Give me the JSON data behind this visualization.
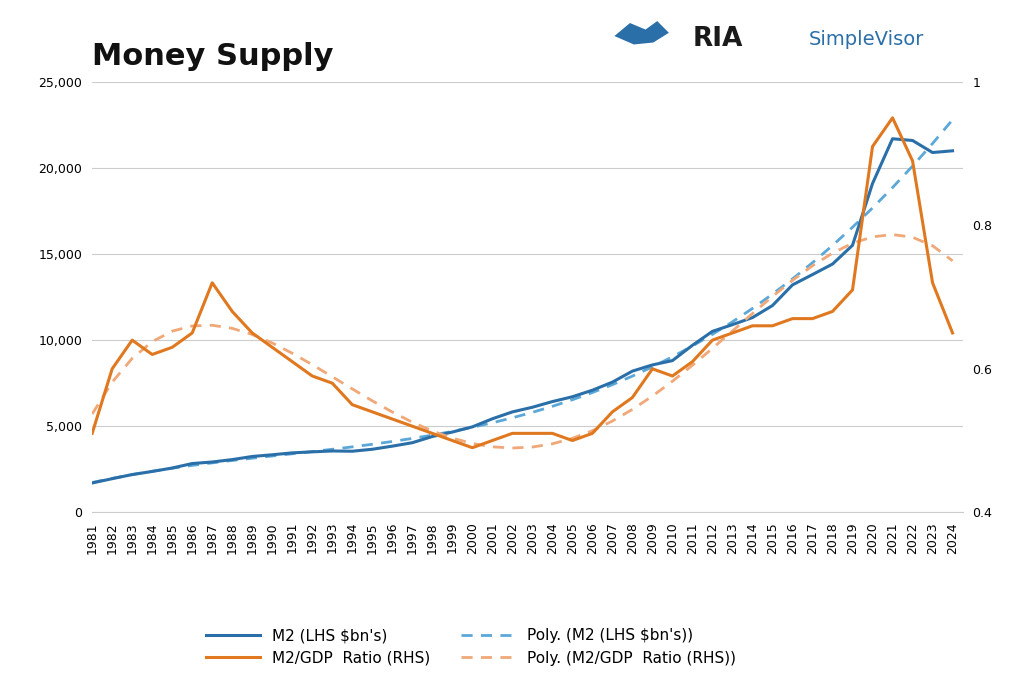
{
  "title": "Money Supply",
  "m2_color": "#2B6FA8",
  "ratio_color": "#E07820",
  "m2_poly_color": "#5BA8D8",
  "ratio_poly_color": "#F0A878",
  "background_color": "#FFFFFF",
  "grid_color": "#CCCCCC",
  "years": [
    1981,
    1982,
    1983,
    1984,
    1985,
    1986,
    1987,
    1988,
    1989,
    1990,
    1991,
    1992,
    1993,
    1994,
    1995,
    1996,
    1997,
    1998,
    1999,
    2000,
    2001,
    2002,
    2003,
    2004,
    2005,
    2006,
    2007,
    2008,
    2009,
    2010,
    2011,
    2012,
    2013,
    2014,
    2015,
    2016,
    2017,
    2018,
    2019,
    2020,
    2021,
    2022,
    2023,
    2024
  ],
  "m2": [
    1700,
    1950,
    2190,
    2370,
    2570,
    2830,
    2920,
    3060,
    3240,
    3340,
    3450,
    3510,
    3560,
    3545,
    3660,
    3840,
    4040,
    4400,
    4660,
    4960,
    5430,
    5830,
    6100,
    6430,
    6710,
    7090,
    7560,
    8200,
    8560,
    8810,
    9700,
    10510,
    10900,
    11310,
    12010,
    13210,
    13810,
    14420,
    15510,
    19100,
    21700,
    21600,
    20900,
    21000
  ],
  "ratio": [
    0.51,
    0.6,
    0.64,
    0.62,
    0.63,
    0.65,
    0.72,
    0.68,
    0.65,
    0.63,
    0.61,
    0.59,
    0.58,
    0.55,
    0.54,
    0.53,
    0.52,
    0.51,
    0.5,
    0.49,
    0.5,
    0.51,
    0.51,
    0.51,
    0.5,
    0.51,
    0.54,
    0.56,
    0.6,
    0.59,
    0.61,
    0.64,
    0.65,
    0.66,
    0.66,
    0.67,
    0.67,
    0.68,
    0.71,
    0.91,
    0.95,
    0.89,
    0.72,
    0.65
  ],
  "ylim_left": [
    0,
    25000
  ],
  "ylim_right": [
    0.4,
    1.0
  ],
  "yticks_left": [
    0,
    5000,
    10000,
    15000,
    20000,
    25000
  ],
  "yticks_right": [
    0.4,
    0.6,
    0.8,
    1.0
  ],
  "title_fontsize": 22,
  "tick_fontsize": 9,
  "legend_fontsize": 11,
  "line_width": 2.2,
  "poly_degree": 4,
  "legend_label_m2": "M2 (LHS $bn's)",
  "legend_label_ratio": "M2/GDP  Ratio (RHS)",
  "legend_label_poly_m2": "Poly. (M2 (LHS $bn's))",
  "legend_label_poly_ratio": "Poly. (M2/GDP  Ratio (RHS))"
}
